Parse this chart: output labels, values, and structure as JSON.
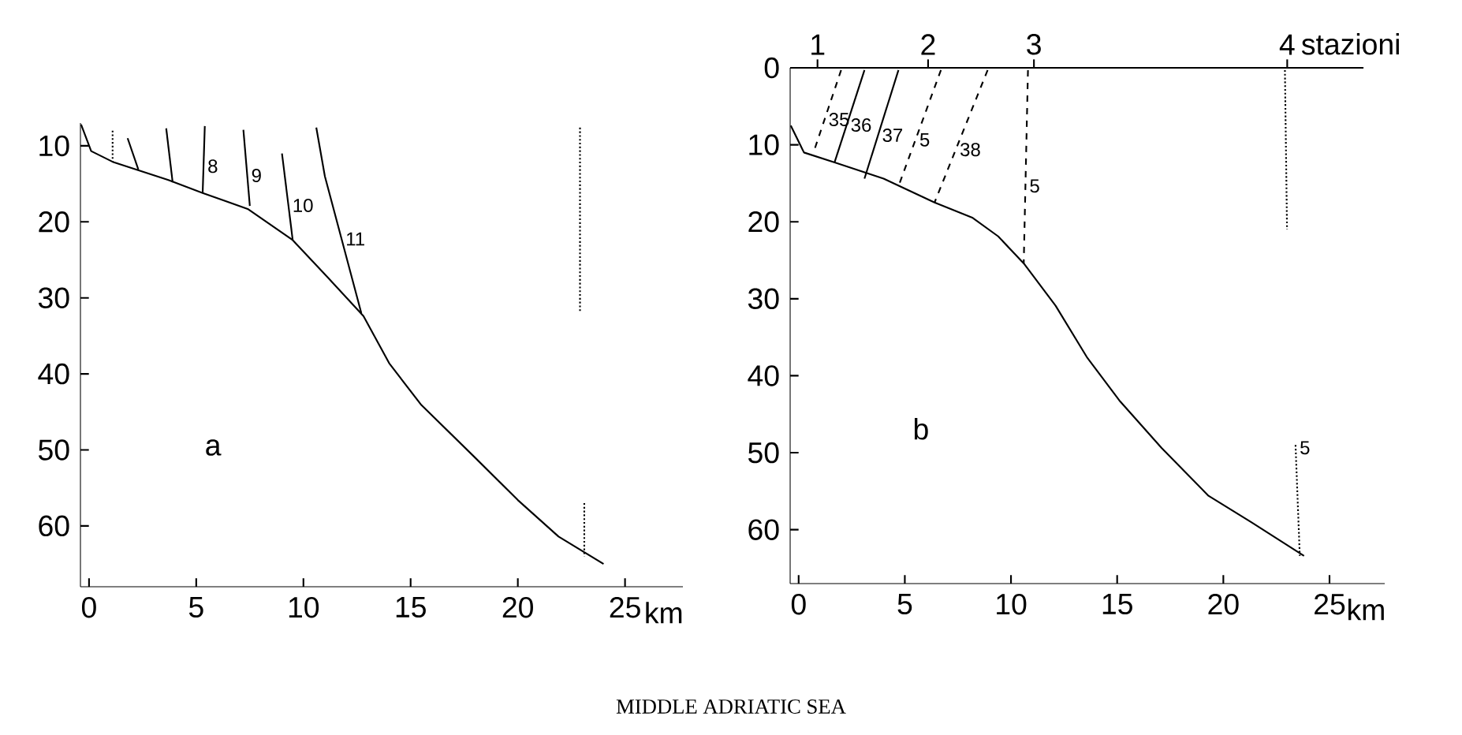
{
  "chart_data": [
    {
      "type": "line",
      "xlabel": "km",
      "xlim": [
        -0.4,
        27.7
      ],
      "ylim": [
        68,
        7
      ],
      "xticks": [
        0,
        5,
        10,
        15,
        20,
        25
      ],
      "yticks": [
        10,
        20,
        30,
        40,
        50,
        60
      ],
      "annotations": [
        "a",
        "MIDDLE ADRIATIC SEA"
      ],
      "series": [
        {
          "color": "#000000",
          "line_style": "solid",
          "x": [
            -0.37,
            0.1,
            1.1,
            3.7,
            5.3,
            7.4,
            9.5,
            11.1,
            12.8,
            14.0,
            15.5,
            18.0,
            20.0,
            21.9,
            24.0
          ],
          "values": [
            7.2,
            10.7,
            12.1,
            14.5,
            16.2,
            18.3,
            22.4,
            27.2,
            32.4,
            38.6,
            44.1,
            51.0,
            56.6,
            61.4,
            65.0
          ]
        },
        {
          "color": "#000000",
          "line_style": "dotted",
          "x": [
            1.1,
            1.1
          ],
          "values": [
            8.0,
            12.1
          ]
        },
        {
          "color": "#000000",
          "line_style": "solid",
          "x": [
            1.8,
            2.3
          ],
          "values": [
            9.0,
            13.1
          ]
        },
        {
          "color": "#000000",
          "line_style": "solid",
          "x": [
            3.6,
            3.9
          ],
          "values": [
            7.7,
            14.8
          ]
        },
        {
          "name": "8",
          "color": "#000000",
          "line_style": "solid",
          "x": [
            5.4,
            5.3
          ],
          "values": [
            7.4,
            16.2
          ]
        },
        {
          "name": "9",
          "color": "#000000",
          "line_style": "solid",
          "x": [
            7.2,
            7.5
          ],
          "values": [
            7.9,
            17.9
          ]
        },
        {
          "name": "10",
          "color": "#000000",
          "line_style": "solid",
          "x": [
            9.0,
            9.5
          ],
          "values": [
            11.0,
            22.4
          ]
        },
        {
          "name": "11",
          "color": "#000000",
          "line_style": "solid",
          "x": [
            10.6,
            11.0,
            12.7
          ],
          "values": [
            7.6,
            14.0,
            32.0
          ]
        },
        {
          "color": "#000000",
          "line_style": "dotted",
          "x": [
            22.9,
            22.9,
            23.0,
            23.1,
            23.1
          ],
          "values": [
            7.6,
            32.0,
            null,
            57.0,
            64.0
          ]
        }
      ]
    },
    {
      "type": "line",
      "xlabel": "km",
      "xlim": [
        -0.4,
        27.6
      ],
      "ylim": [
        67,
        0
      ],
      "ref_lines": [
        {
          "axis": "y",
          "value": 0
        }
      ],
      "xticks": [
        0,
        5,
        10,
        15,
        20,
        25
      ],
      "yticks": [
        0,
        10,
        20,
        30,
        40,
        50,
        60
      ],
      "annotations": [
        "b",
        "1",
        "2",
        "3",
        "4",
        "stazioni"
      ],
      "series": [
        {
          "color": "#000000",
          "line_style": "solid",
          "x": [
            -0.37,
            0.25,
            1.7,
            4.0,
            6.4,
            8.2,
            9.4,
            10.6,
            12.1,
            13.6,
            15.1,
            17.1,
            19.3,
            21.3,
            23.8
          ],
          "values": [
            7.5,
            11.0,
            12.3,
            14.4,
            17.5,
            19.5,
            21.9,
            25.4,
            30.9,
            37.7,
            43.2,
            49.4,
            55.6,
            59.0,
            63.4
          ]
        },
        {
          "name": "35",
          "color": "#000000",
          "line_style": "dashed",
          "x": [
            2.0,
            0.7
          ],
          "values": [
            0.3,
            11.0
          ]
        },
        {
          "name": "36",
          "color": "#000000",
          "line_style": "solid",
          "x": [
            3.1,
            1.7
          ],
          "values": [
            0.3,
            12.2
          ]
        },
        {
          "name": "37",
          "color": "#000000",
          "line_style": "solid",
          "x": [
            4.7,
            3.1
          ],
          "values": [
            0.3,
            14.4
          ]
        },
        {
          "name": "5",
          "color": "#000000",
          "line_style": "dashed",
          "x": [
            6.7,
            4.7
          ],
          "values": [
            0.3,
            15.4
          ]
        },
        {
          "name": "38",
          "color": "#000000",
          "line_style": "dashed",
          "x": [
            8.9,
            6.4
          ],
          "values": [
            0.3,
            17.5
          ]
        },
        {
          "name": "5",
          "color": "#000000",
          "line_style": "dashed",
          "x": [
            10.8,
            10.6
          ],
          "values": [
            0.3,
            25.4
          ]
        },
        {
          "name": "5",
          "color": "#000000",
          "line_style": "dotted",
          "x": [
            22.9,
            23.0,
            23.1,
            23.4,
            23.6
          ],
          "values": [
            0.3,
            21.0,
            null,
            49.0,
            63.4
          ]
        }
      ]
    }
  ]
}
